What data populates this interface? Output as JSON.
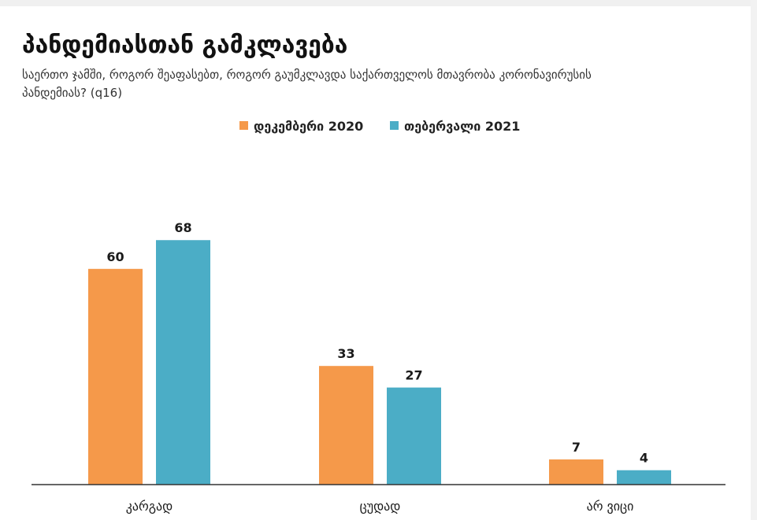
{
  "title": "პანდემიასთან გამკლავება",
  "subtitle": "საერთო ჯამში, როგორ შეაფასებთ, როგორ გაუმკლავდა საქართველოს მთავრობა კორონავირუსის პანდემიას? (q16)",
  "chart_data": {
    "type": "bar",
    "categories": [
      "კარგად",
      "ცუდად",
      "არ ვიცი"
    ],
    "series": [
      {
        "name": "დეკემბერი 2020",
        "values": [
          60,
          33,
          7
        ],
        "color": "#f5994a"
      },
      {
        "name": "თებერვალი 2021",
        "values": [
          68,
          27,
          4
        ],
        "color": "#4badc6"
      }
    ],
    "title": "პანდემიასთან გამკლავება",
    "xlabel": "",
    "ylabel": "",
    "ylim": [
      0,
      80
    ],
    "grid": false,
    "legend": "top-center",
    "data_labels": true
  }
}
